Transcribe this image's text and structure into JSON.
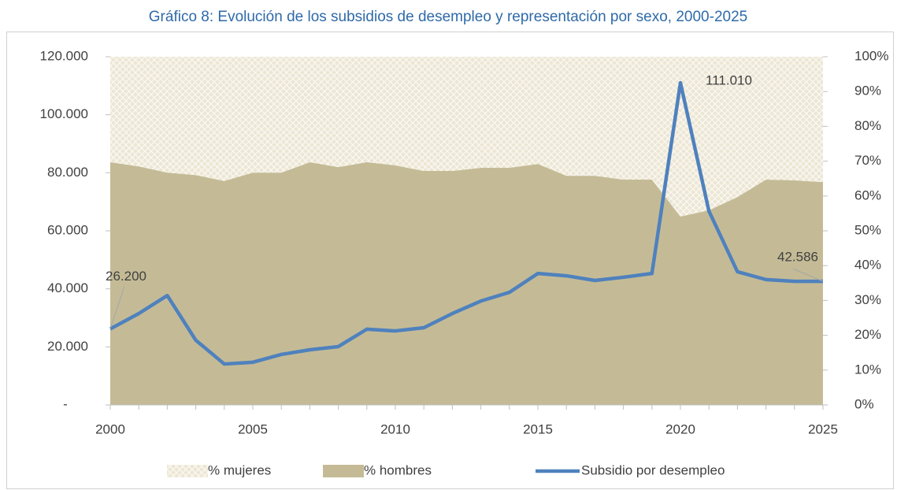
{
  "chart_data": {
    "type": "area_line",
    "title": "Gráfico 8: Evolución de los subsidios de desempleo y representación por sexo, 2000-2025",
    "x": [
      2000,
      2001,
      2002,
      2003,
      2004,
      2005,
      2006,
      2007,
      2008,
      2009,
      2010,
      2011,
      2012,
      2013,
      2014,
      2015,
      2016,
      2017,
      2018,
      2019,
      2020,
      2021,
      2022,
      2023,
      2024,
      2025
    ],
    "xlim": [
      2000,
      2025
    ],
    "xticks": [
      2000,
      2005,
      2010,
      2015,
      2020,
      2025
    ],
    "ylim": [
      0,
      120000
    ],
    "yticks": [
      {
        "value": 0,
        "label": "-"
      },
      {
        "value": 20000,
        "label": "20.000"
      },
      {
        "value": 40000,
        "label": "40.000"
      },
      {
        "value": 60000,
        "label": "60.000"
      },
      {
        "value": 80000,
        "label": "80.000"
      },
      {
        "value": 100000,
        "label": "100.000"
      },
      {
        "value": 120000,
        "label": "120.000"
      }
    ],
    "y2lim": [
      0,
      100
    ],
    "y2ticks": [
      {
        "value": 0,
        "label": "0%"
      },
      {
        "value": 10,
        "label": "10%"
      },
      {
        "value": 20,
        "label": "20%"
      },
      {
        "value": 30,
        "label": "30%"
      },
      {
        "value": 40,
        "label": "40%"
      },
      {
        "value": 50,
        "label": "50%"
      },
      {
        "value": 60,
        "label": "60%"
      },
      {
        "value": 70,
        "label": "70%"
      },
      {
        "value": 80,
        "label": "80%"
      },
      {
        "value": 90,
        "label": "90%"
      },
      {
        "value": 100,
        "label": "100%"
      }
    ],
    "series": [
      {
        "name": "% mujeres",
        "color": "#ece6d4",
        "axis": "y2",
        "stacked": true,
        "values": [
          30.3,
          31.5,
          33.3,
          34.0,
          35.7,
          33.3,
          33.3,
          30.3,
          31.7,
          30.3,
          31.2,
          32.8,
          32.8,
          31.9,
          31.9,
          30.8,
          34.2,
          34.2,
          35.3,
          35.3,
          45.9,
          44.1,
          40.3,
          35.3,
          35.5,
          36.0
        ]
      },
      {
        "name": "% hombres",
        "color": "#c4bb96",
        "axis": "y2",
        "stacked": true,
        "values": [
          69.7,
          68.5,
          66.7,
          66.0,
          64.3,
          66.7,
          66.7,
          69.7,
          68.3,
          69.7,
          68.8,
          67.2,
          67.2,
          68.1,
          68.1,
          69.2,
          65.8,
          65.8,
          64.7,
          64.7,
          54.1,
          55.9,
          59.7,
          64.7,
          64.5,
          64.0
        ]
      },
      {
        "name": "Subsidio por desempleo",
        "color": "#4f81bd",
        "axis": "y",
        "values": [
          26200,
          31500,
          37700,
          22300,
          14100,
          14700,
          17400,
          19000,
          20100,
          26100,
          25500,
          26600,
          31500,
          35800,
          38800,
          45300,
          44500,
          42900,
          44000,
          45300,
          111010,
          66800,
          45900,
          43200,
          42600,
          42586
        ],
        "value_labels": [
          "26.200",
          null,
          null,
          null,
          null,
          null,
          null,
          null,
          null,
          null,
          null,
          null,
          null,
          null,
          null,
          null,
          null,
          null,
          null,
          null,
          "111.010",
          null,
          null,
          null,
          null,
          "42.586"
        ]
      }
    ]
  }
}
